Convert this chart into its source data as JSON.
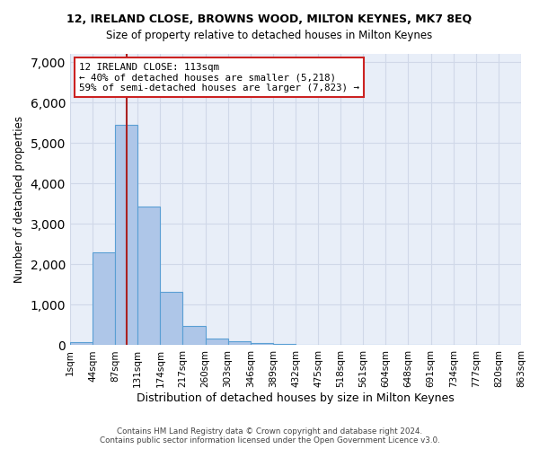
{
  "title_line1": "12, IRELAND CLOSE, BROWNS WOOD, MILTON KEYNES, MK7 8EQ",
  "title_line2": "Size of property relative to detached houses in Milton Keynes",
  "xlabel": "Distribution of detached houses by size in Milton Keynes",
  "ylabel": "Number of detached properties",
  "footer_line1": "Contains HM Land Registry data © Crown copyright and database right 2024.",
  "footer_line2": "Contains public sector information licensed under the Open Government Licence v3.0.",
  "bin_labels": [
    "1sqm",
    "44sqm",
    "87sqm",
    "131sqm",
    "174sqm",
    "217sqm",
    "260sqm",
    "303sqm",
    "346sqm",
    "389sqm",
    "432sqm",
    "475sqm",
    "518sqm",
    "561sqm",
    "604sqm",
    "648sqm",
    "691sqm",
    "734sqm",
    "777sqm",
    "820sqm",
    "863sqm"
  ],
  "bar_values": [
    80,
    2300,
    5450,
    3430,
    1310,
    470,
    160,
    95,
    55,
    30,
    0,
    0,
    0,
    0,
    0,
    0,
    0,
    0,
    0,
    0
  ],
  "bar_color": "#aec6e8",
  "bar_edge_color": "#5a9fd4",
  "grid_color": "#d0d8e8",
  "background_color": "#e8eef8",
  "vline_x": 2,
  "vline_color": "#aa2222",
  "annotation_text": "12 IRELAND CLOSE: 113sqm\n← 40% of detached houses are smaller (5,218)\n59% of semi-detached houses are larger (7,823) →",
  "annotation_box_color": "#cc2222",
  "ylim": [
    0,
    7200
  ],
  "yticks": [
    0,
    1000,
    2000,
    3000,
    4000,
    5000,
    6000,
    7000
  ]
}
